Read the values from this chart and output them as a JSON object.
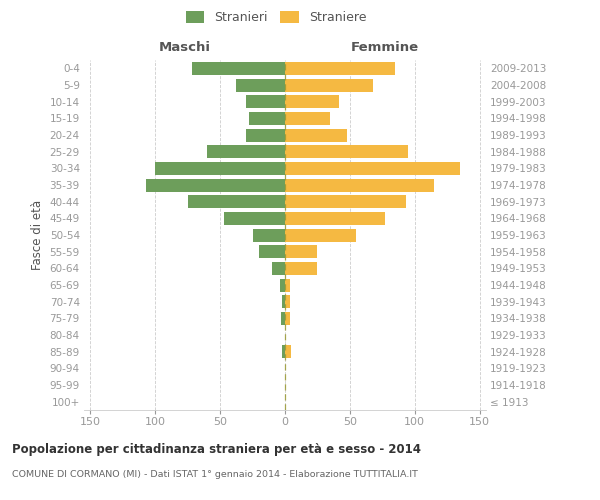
{
  "age_groups": [
    "100+",
    "95-99",
    "90-94",
    "85-89",
    "80-84",
    "75-79",
    "70-74",
    "65-69",
    "60-64",
    "55-59",
    "50-54",
    "45-49",
    "40-44",
    "35-39",
    "30-34",
    "25-29",
    "20-24",
    "15-19",
    "10-14",
    "5-9",
    "0-4"
  ],
  "birth_years": [
    "≤ 1913",
    "1914-1918",
    "1919-1923",
    "1924-1928",
    "1929-1933",
    "1934-1938",
    "1939-1943",
    "1944-1948",
    "1949-1953",
    "1954-1958",
    "1959-1963",
    "1964-1968",
    "1969-1973",
    "1974-1978",
    "1979-1983",
    "1984-1988",
    "1989-1993",
    "1994-1998",
    "1999-2003",
    "2004-2008",
    "2009-2013"
  ],
  "males": [
    0,
    0,
    0,
    2,
    0,
    3,
    2,
    4,
    10,
    20,
    25,
    47,
    75,
    107,
    100,
    60,
    30,
    28,
    30,
    38,
    72
  ],
  "females": [
    0,
    0,
    0,
    5,
    0,
    4,
    4,
    4,
    25,
    25,
    55,
    77,
    93,
    115,
    135,
    95,
    48,
    35,
    42,
    68,
    85
  ],
  "male_color": "#6d9e5b",
  "female_color": "#f5b942",
  "background_color": "#ffffff",
  "grid_color": "#cccccc",
  "title": "Popolazione per cittadinanza straniera per età e sesso - 2014",
  "subtitle": "COMUNE DI CORMANO (MI) - Dati ISTAT 1° gennaio 2014 - Elaborazione TUTTITALIA.IT",
  "xlabel_left": "Maschi",
  "xlabel_right": "Femmine",
  "ylabel_left": "Fasce di età",
  "xlim": 155,
  "legend_male": "Stranieri",
  "legend_female": "Straniere",
  "tick_color": "#999999",
  "label_color": "#555555",
  "xticks": [
    -150,
    -100,
    -50,
    0,
    50,
    100,
    150
  ],
  "xtick_labels": [
    "150",
    "100",
    "50",
    "0",
    "50",
    "100",
    "150"
  ]
}
